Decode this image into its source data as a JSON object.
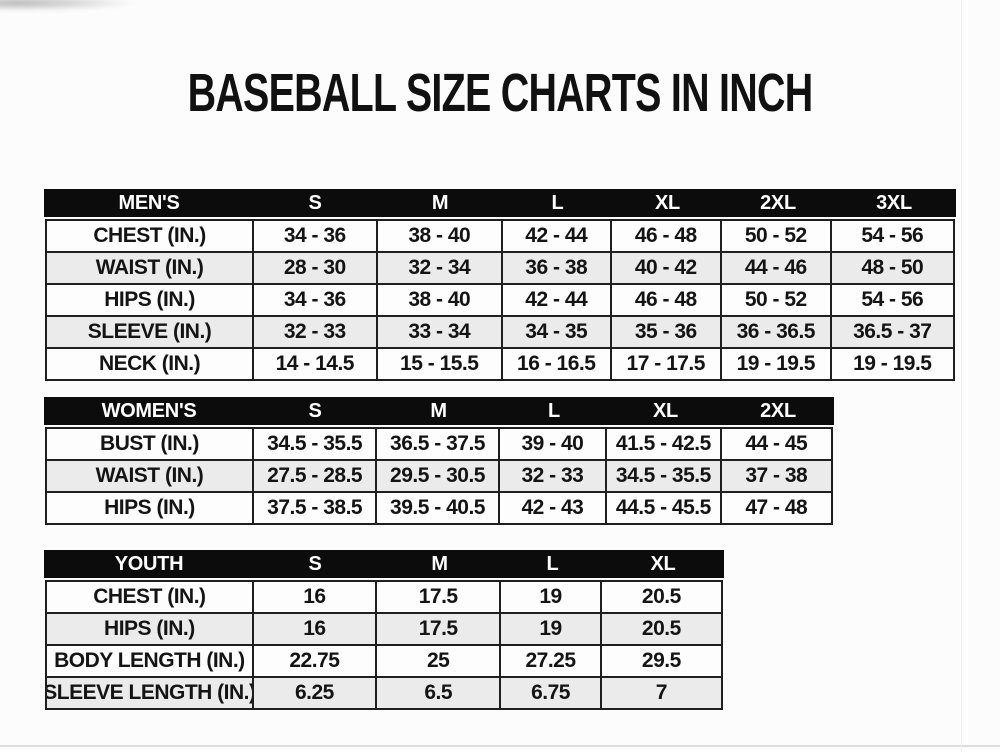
{
  "title": "BASEBALL SIZE CHARTS IN INCH",
  "chart_data": [
    {
      "type": "table",
      "title": "MEN'S",
      "columns": [
        "MEN'S",
        "S",
        "M",
        "L",
        "XL",
        "2XL",
        "3XL"
      ],
      "rows": [
        {
          "label": "CHEST (IN.)",
          "values": [
            "34 - 36",
            "38 - 40",
            "42 - 44",
            "46 - 48",
            "50 - 52",
            "54 - 56"
          ]
        },
        {
          "label": "WAIST (IN.)",
          "values": [
            "28 - 30",
            "32 - 34",
            "36 - 38",
            "40 - 42",
            "44 - 46",
            "48 - 50"
          ]
        },
        {
          "label": "HIPS (IN.)",
          "values": [
            "34 - 36",
            "38 - 40",
            "42 - 44",
            "46 - 48",
            "50 - 52",
            "54 - 56"
          ]
        },
        {
          "label": "SLEEVE (IN.)",
          "values": [
            "32 - 33",
            "33 - 34",
            "34 - 35",
            "35 - 36",
            "36 - 36.5",
            "36.5 - 37"
          ]
        },
        {
          "label": "NECK (IN.)",
          "values": [
            "14 - 14.5",
            "15 - 15.5",
            "16 - 16.5",
            "17 - 17.5",
            "19 - 19.5",
            "19 - 19.5"
          ]
        }
      ]
    },
    {
      "type": "table",
      "title": "WOMEN'S",
      "columns": [
        "WOMEN'S",
        "S",
        "M",
        "L",
        "XL",
        "2XL"
      ],
      "rows": [
        {
          "label": "BUST (IN.)",
          "values": [
            "34.5 - 35.5",
            "36.5 - 37.5",
            "39 - 40",
            "41.5 - 42.5",
            "44 - 45"
          ]
        },
        {
          "label": "WAIST (IN.)",
          "values": [
            "27.5 - 28.5",
            "29.5 - 30.5",
            "32 - 33",
            "34.5 - 35.5",
            "37 - 38"
          ]
        },
        {
          "label": "HIPS (IN.)",
          "values": [
            "37.5 - 38.5",
            "39.5 - 40.5",
            "42 - 43",
            "44.5 - 45.5",
            "47 - 48"
          ]
        }
      ]
    },
    {
      "type": "table",
      "title": "YOUTH",
      "columns": [
        "YOUTH",
        "S",
        "M",
        "L",
        "XL"
      ],
      "rows": [
        {
          "label": "CHEST (IN.)",
          "values": [
            "16",
            "17.5",
            "19",
            "20.5"
          ]
        },
        {
          "label": "HIPS (IN.)",
          "values": [
            "16",
            "17.5",
            "19",
            "20.5"
          ]
        },
        {
          "label": "BODY LENGTH (IN.)",
          "values": [
            "22.75",
            "25",
            "27.25",
            "29.5"
          ]
        },
        {
          "label": "SLEEVE LENGTH (IN.)",
          "values": [
            "6.25",
            "6.5",
            "6.75",
            "7"
          ]
        }
      ]
    }
  ],
  "colors": {
    "header_bg": "#0c0c0c",
    "header_text": "#ffffff",
    "border": "#1f1f1f",
    "stripe_gray": "#ebebeb",
    "stripe_white": "#fdfdfd"
  }
}
